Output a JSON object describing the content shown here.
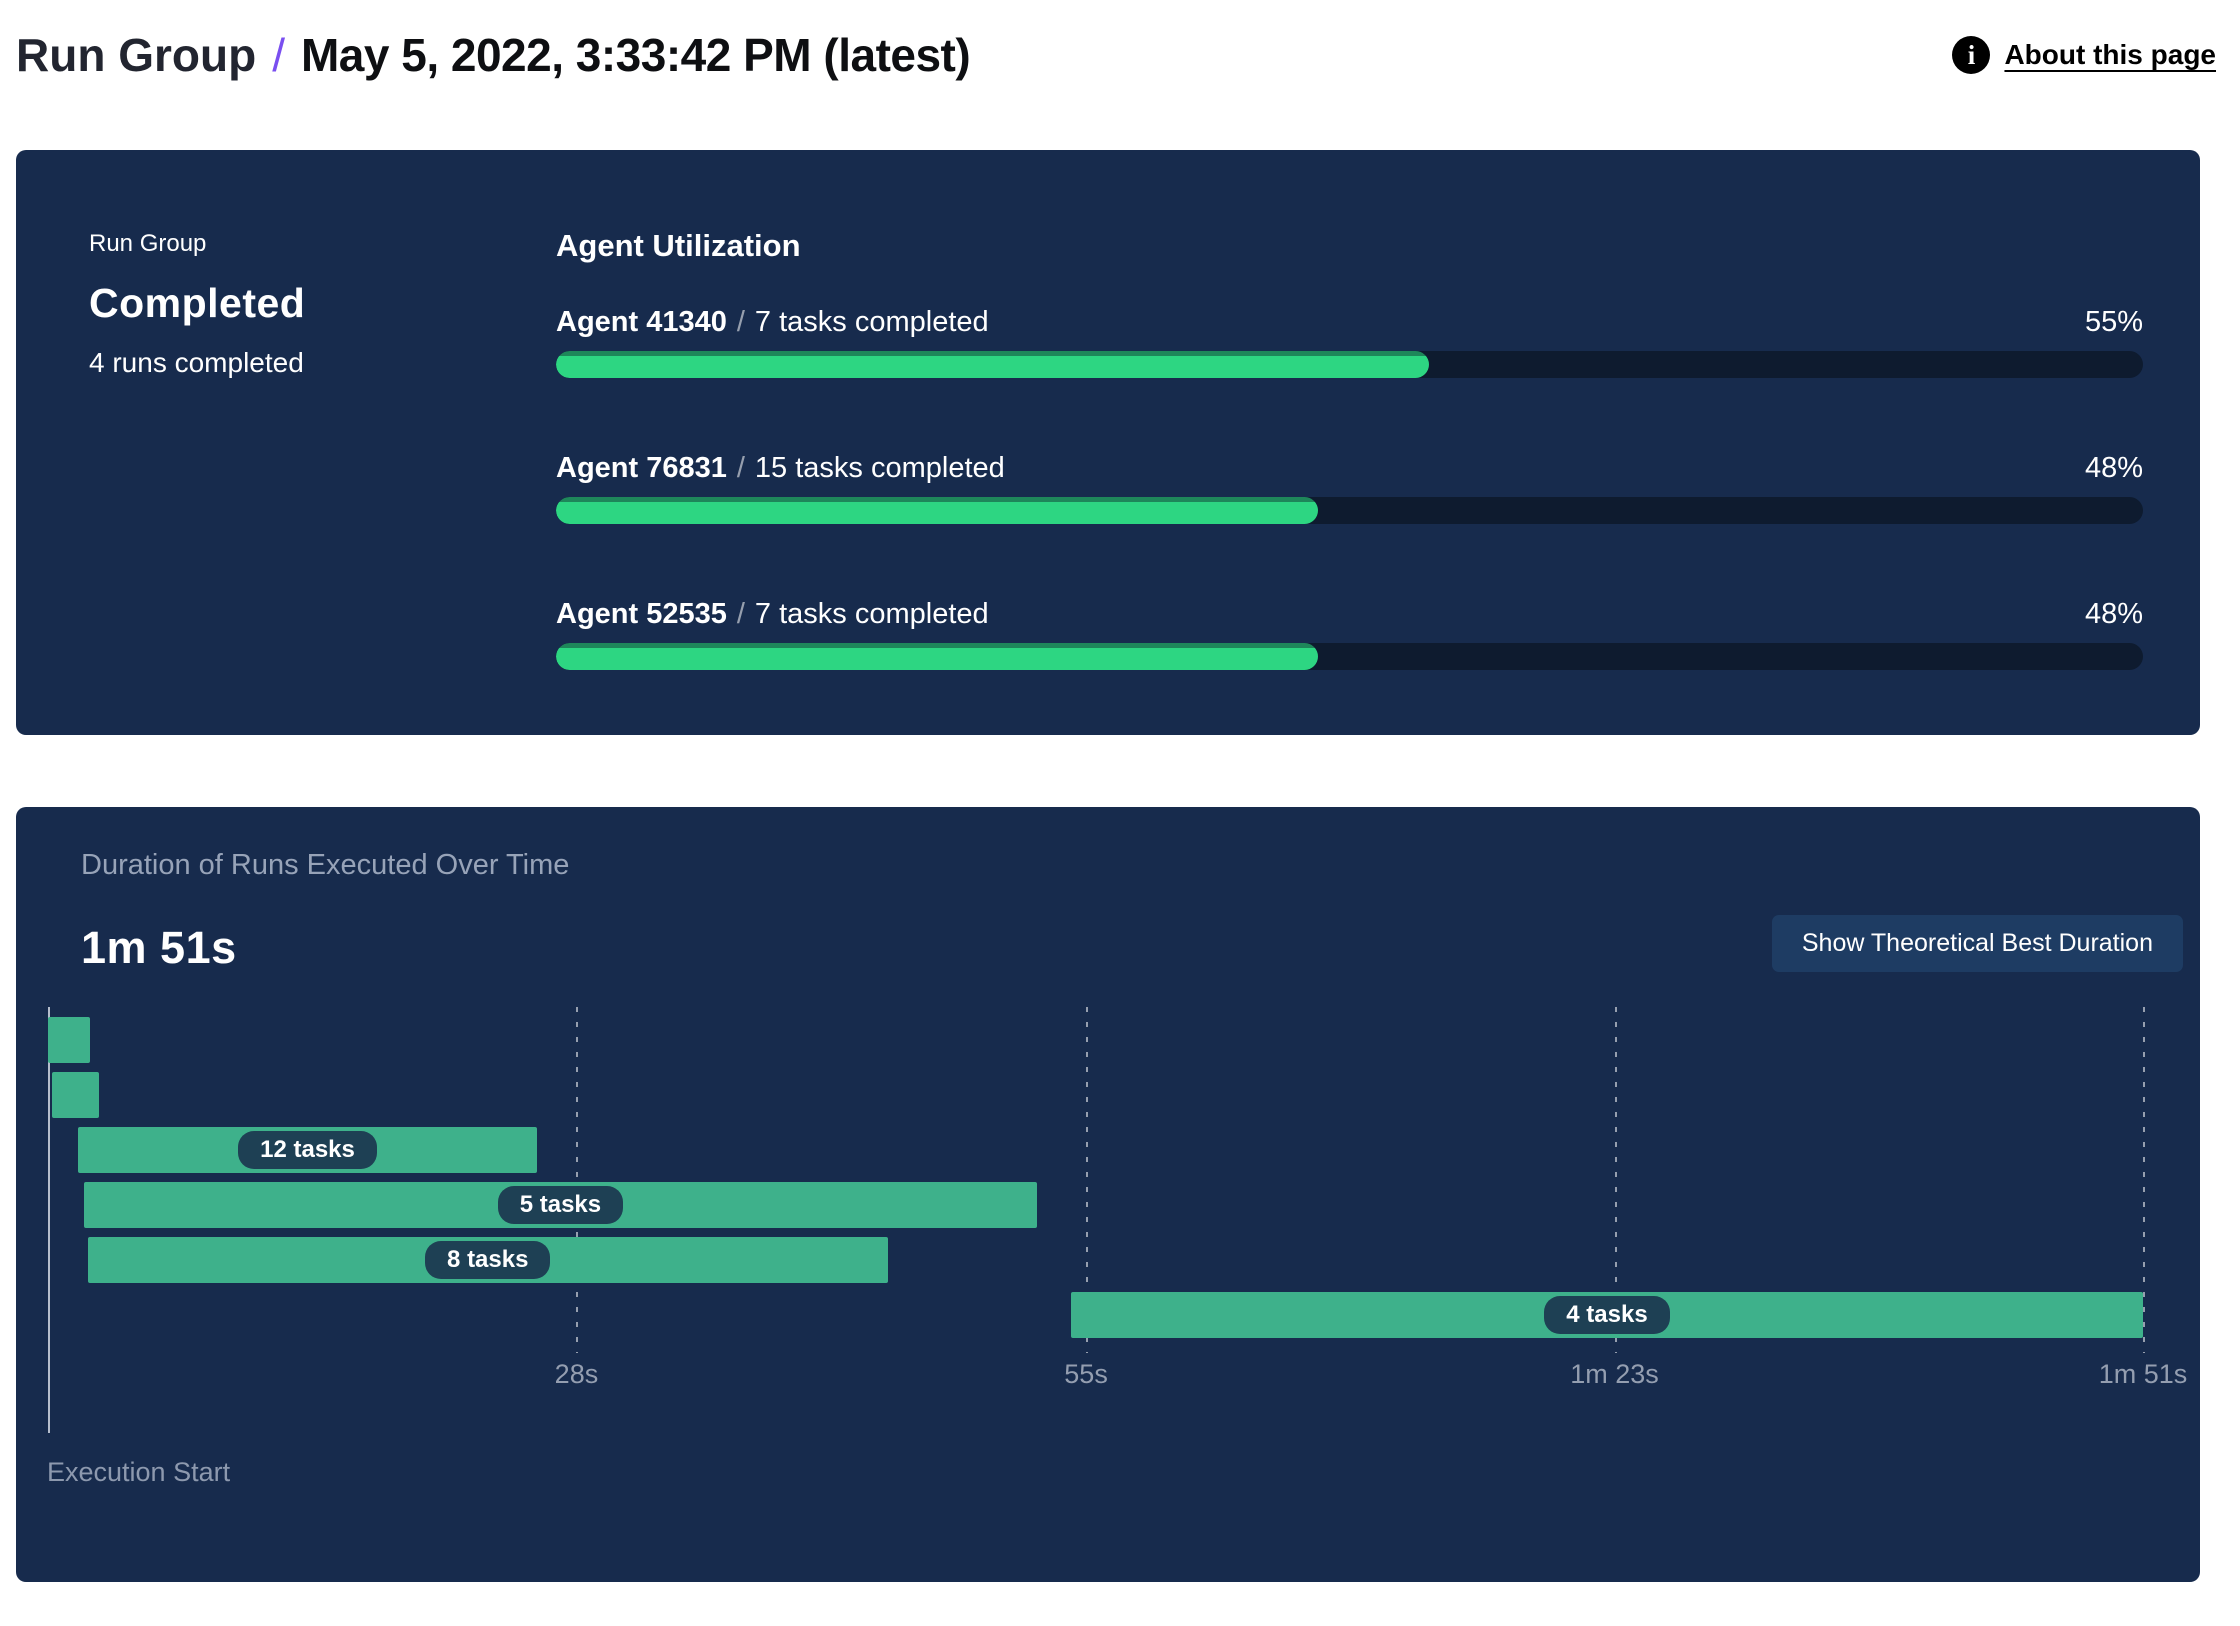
{
  "header": {
    "breadcrumb_root": "Run Group",
    "breadcrumb_separator": "/",
    "title": "May 5, 2022, 3:33:42 PM (latest)",
    "info_icon_glyph": "i",
    "about_link": "About this page"
  },
  "summary_panel": {
    "group_label": "Run Group",
    "status": "Completed",
    "runs_completed": "4 runs completed",
    "section_title": "Agent Utilization",
    "agent_separator": "/",
    "agents": [
      {
        "name": "Agent 41340",
        "tasks": "7 tasks completed",
        "percent_label": "55%",
        "percent": 55
      },
      {
        "name": "Agent 76831",
        "tasks": "15 tasks completed",
        "percent_label": "48%",
        "percent": 48
      },
      {
        "name": "Agent 52535",
        "tasks": "7 tasks completed",
        "percent_label": "48%",
        "percent": 48
      }
    ]
  },
  "duration_panel": {
    "subtitle": "Duration of Runs Executed Over Time",
    "total_duration": "1m 51s",
    "button_label": "Show Theoretical Best Duration",
    "execution_start_label": "Execution Start"
  },
  "chart_data": {
    "type": "bar",
    "variant": "gantt-timeline",
    "title": "Duration of Runs Executed Over Time",
    "unit": "seconds",
    "axis": {
      "min": 0,
      "max": 111,
      "origin_label": "Execution Start",
      "ticks": [
        {
          "label": "28s",
          "value": 28
        },
        {
          "label": "55s",
          "value": 55
        },
        {
          "label": "1m 23s",
          "value": 83
        },
        {
          "label": "1m 51s",
          "value": 111
        }
      ]
    },
    "runs": [
      {
        "start": 0,
        "end": 2.2,
        "tasks_label": ""
      },
      {
        "start": 0.2,
        "end": 2.7,
        "tasks_label": ""
      },
      {
        "start": 1.6,
        "end": 25.9,
        "tasks_label": "12 tasks"
      },
      {
        "start": 1.9,
        "end": 52.4,
        "tasks_label": "5 tasks"
      },
      {
        "start": 2.1,
        "end": 44.5,
        "tasks_label": "8 tasks"
      },
      {
        "start": 54.2,
        "end": 111,
        "tasks_label": "4 tasks"
      }
    ]
  },
  "colors": {
    "panel_background": "#172b4d",
    "utilization_fill_green": "#2dd682",
    "utilization_fill_edge": "#1e875a",
    "utilization_track": "#0e1b2f",
    "gantt_bar_green": "#3eb18b",
    "gantt_pill_background": "#1e4054",
    "button_background": "#1e3c63",
    "breadcrumb_separator_purple": "#7a4ff0",
    "muted_text": "#97a3b8",
    "axis_label_text": "#949eb0"
  }
}
